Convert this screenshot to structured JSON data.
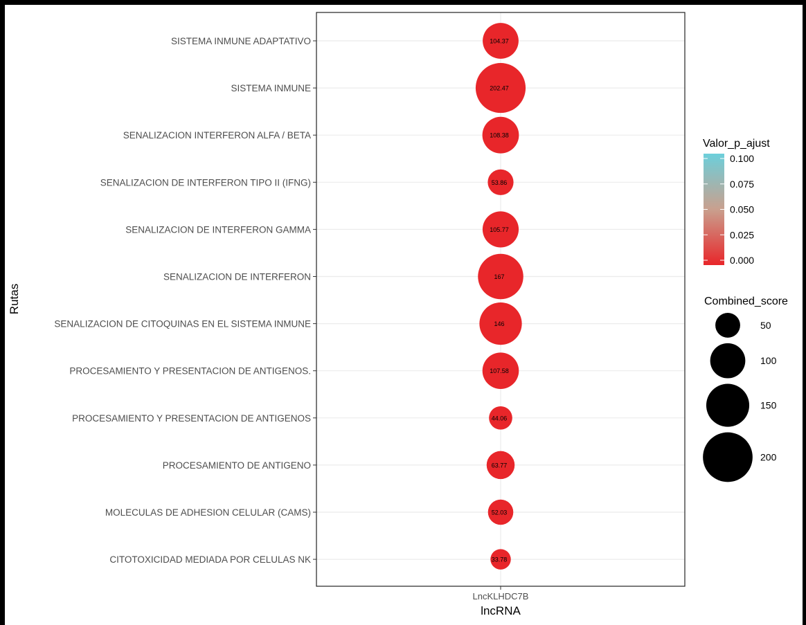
{
  "chart_data": {
    "type": "bubble",
    "title": "",
    "xlabel": "lncRNA",
    "ylabel": "Rutas",
    "x_categories": [
      "LncKLHDC7B"
    ],
    "grid": true,
    "points": [
      {
        "x": "LncKLHDC7B",
        "y": "SISTEMA INMUNE ADAPTATIVO",
        "combined_score": 104.37,
        "label": "104.37",
        "p_adj": 0.0
      },
      {
        "x": "LncKLHDC7B",
        "y": "SISTEMA INMUNE",
        "combined_score": 202.47,
        "label": "202.47",
        "p_adj": 0.0
      },
      {
        "x": "LncKLHDC7B",
        "y": "SENALIZACION INTERFERON ALFA / BETA",
        "combined_score": 108.38,
        "label": "108.38",
        "p_adj": 0.0
      },
      {
        "x": "LncKLHDC7B",
        "y": "SENALIZACION DE INTERFERON TIPO II (IFNG)",
        "combined_score": 53.86,
        "label": "53.86",
        "p_adj": 0.0
      },
      {
        "x": "LncKLHDC7B",
        "y": "SENALIZACION DE INTERFERON GAMMA",
        "combined_score": 105.77,
        "label": "105.77",
        "p_adj": 0.0
      },
      {
        "x": "LncKLHDC7B",
        "y": "SENALIZACION DE INTERFERON",
        "combined_score": 167,
        "label": "167",
        "p_adj": 0.0
      },
      {
        "x": "LncKLHDC7B",
        "y": "SENALIZACION DE CITOQUINAS EN EL SISTEMA INMUNE",
        "combined_score": 146,
        "label": "146",
        "p_adj": 0.0
      },
      {
        "x": "LncKLHDC7B",
        "y": "PROCESAMIENTO Y PRESENTACION DE ANTIGENOS.",
        "combined_score": 107.58,
        "label": "107.58",
        "p_adj": 0.0
      },
      {
        "x": "LncKLHDC7B",
        "y": "PROCESAMIENTO Y PRESENTACION DE ANTIGENOS",
        "combined_score": 44.06,
        "label": "44.06",
        "p_adj": 0.0
      },
      {
        "x": "LncKLHDC7B",
        "y": "PROCESAMIENTO DE ANTIGENO",
        "combined_score": 63.77,
        "label": "63.77",
        "p_adj": 0.0
      },
      {
        "x": "LncKLHDC7B",
        "y": "MOLECULAS DE ADHESION CELULAR (CAMS)",
        "combined_score": 52.03,
        "label": "52.03",
        "p_adj": 0.0
      },
      {
        "x": "LncKLHDC7B",
        "y": "CITOTOXICIDAD MEDIADA POR CELULAS NK",
        "combined_score": 33.78,
        "label": "33.78",
        "p_adj": 0.0
      }
    ],
    "color_legend": {
      "title": "Valor_p_ajust",
      "breaks": [
        "0.100",
        "0.075",
        "0.050",
        "0.025",
        "0.000"
      ],
      "break_values": [
        0.1,
        0.075,
        0.05,
        0.025,
        0.0
      ],
      "low_color": "#e8262a",
      "mid_color": "#c9a08e",
      "high_color": "#6ccfdb",
      "range": [
        0.0,
        0.1
      ]
    },
    "size_legend": {
      "title": "Combined_score",
      "breaks": [
        "50",
        "100",
        "150",
        "200"
      ],
      "break_values": [
        50,
        100,
        150,
        200
      ]
    },
    "point_color": "#e8262a"
  }
}
